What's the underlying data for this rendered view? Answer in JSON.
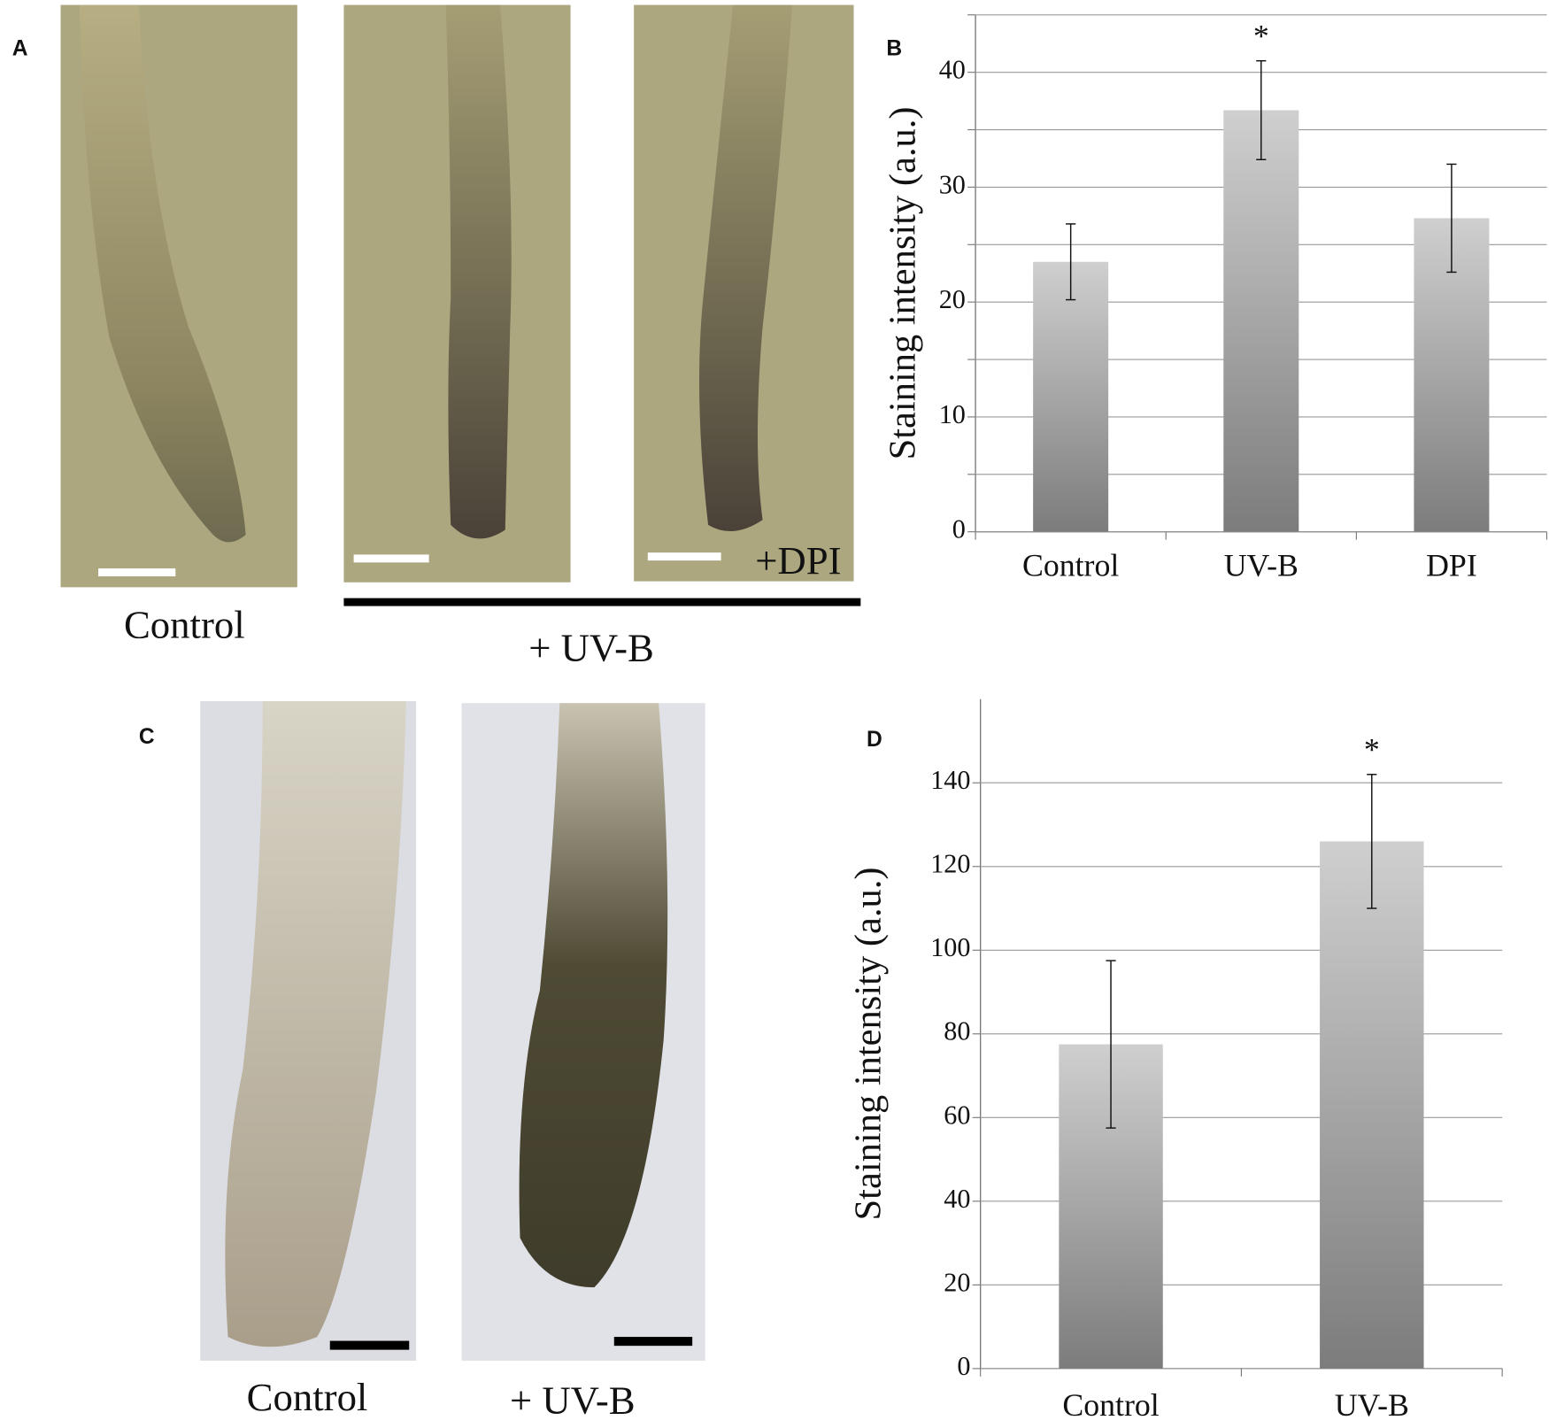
{
  "panels": {
    "a": "A",
    "b": "B",
    "c": "C",
    "d": "D"
  },
  "photo_labels": {
    "a_control": "Control",
    "a_uvb": "+ UV-B",
    "a_dpi": "+DPI",
    "c_control": "Control",
    "c_uvb": "+ UV-B"
  },
  "chart_data": [
    {
      "type": "bar",
      "ylabel": "Staining intensity (a.u.)",
      "categories": [
        "Control",
        "UV-B",
        "DPI"
      ],
      "values": [
        23.5,
        36.7,
        27.3
      ],
      "errors": [
        3.3,
        4.3,
        4.7
      ],
      "color": "#a6a6a6",
      "ylim": [
        0,
        45
      ],
      "yticks": [
        0,
        10,
        20,
        30,
        40
      ],
      "minor_yticks": [
        5,
        15,
        25,
        35,
        45
      ],
      "grid": true,
      "annotations": [
        {
          "category": 1,
          "text": "*"
        }
      ]
    },
    {
      "type": "bar",
      "ylabel": "Staining intensity (a.u.)",
      "categories": [
        "Control",
        "UV-B"
      ],
      "values": [
        77.5,
        126
      ],
      "errors": [
        20,
        16
      ],
      "color": "#a6a6a6",
      "ylim": [
        0,
        160
      ],
      "yticks": [
        0,
        20,
        40,
        60,
        80,
        100,
        120,
        140
      ],
      "grid": true,
      "annotations": [
        {
          "category": 1,
          "text": "*"
        }
      ]
    }
  ]
}
